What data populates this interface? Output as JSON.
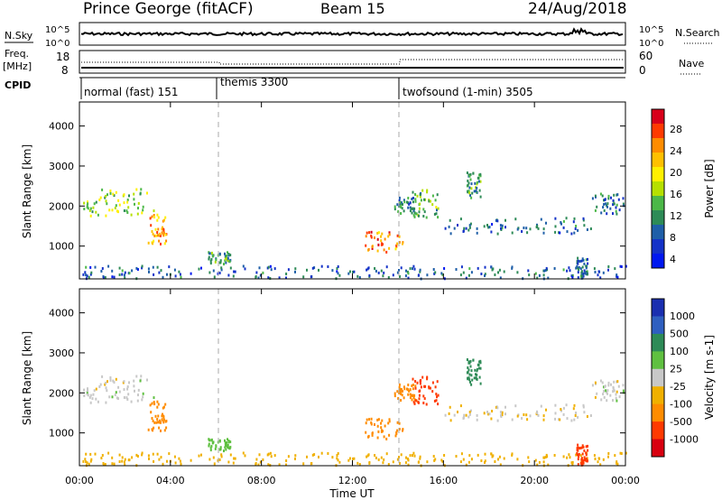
{
  "header": {
    "station": "Prince George (fitACF)",
    "beam": "Beam 15",
    "date": "24/Aug/2018"
  },
  "noise_panel": {
    "left_label": "N.Sky",
    "left_ticks": [
      "10^5",
      "10^0"
    ],
    "right_ticks": [
      "10^5",
      "10^0"
    ],
    "right_label": "N.Search"
  },
  "freq_panel": {
    "label_line1": "Freq.",
    "label_line2": "[MHz]",
    "left_ticks": [
      "18",
      "8"
    ],
    "right_ticks": [
      "60",
      "0"
    ],
    "right_label": "Nave"
  },
  "cpid_panel": {
    "label": "CPID",
    "modes": [
      {
        "name": "normal (fast) 151",
        "start_hour": 0
      },
      {
        "name": "themis 3300",
        "start_hour": 6
      },
      {
        "name": "twofsound (1-min) 3505",
        "start_hour": 14
      }
    ]
  },
  "axes": {
    "ylabel": "Slant Range [km]",
    "yticks": [
      1000,
      2000,
      3000,
      4000
    ],
    "yrange_km": [
      180,
      4600
    ],
    "xlabel": "Time UT",
    "xticks": [
      "00:00",
      "04:00",
      "08:00",
      "12:00",
      "16:00",
      "20:00",
      "00:00"
    ],
    "xrange_hours": [
      0,
      24
    ]
  },
  "colorbars": {
    "power": {
      "label": "Power [dB]",
      "ticks": [
        "28",
        "24",
        "20",
        "16",
        "12",
        "8",
        "4"
      ],
      "colors": [
        "#d8001a",
        "#ff3a00",
        "#ff8c00",
        "#ffc000",
        "#fff000",
        "#b6e000",
        "#4cb848",
        "#2e8b57",
        "#1f5fa8",
        "#1432c8",
        "#0018f0"
      ]
    },
    "velocity": {
      "label": "Velocity [m s-1]",
      "ticks": [
        "1000",
        "500",
        "100",
        "25",
        "-25",
        "-100",
        "-500",
        "-1000"
      ],
      "colors": [
        "#1a2fb0",
        "#2f5fc0",
        "#2e8b57",
        "#5fc040",
        "#c8c8c8",
        "#f0b000",
        "#ff8c00",
        "#ff3a00",
        "#d80010"
      ]
    }
  },
  "chart_data": {
    "type": "heatmap",
    "title": "Prince George (fitACF) Beam 15 24/Aug/2018",
    "xlabel": "Time UT",
    "ylabel": "Slant Range [km]",
    "xlim_hours": [
      0,
      24
    ],
    "ylim_km": [
      180,
      4600
    ],
    "mode_changes_hours": [
      6,
      14
    ],
    "echo_regions": [
      {
        "t0": 0.1,
        "t1": 3.3,
        "r0": 1750,
        "r1": 2450,
        "power_db": 14,
        "velocity": 0
      },
      {
        "t0": 3.0,
        "t1": 3.8,
        "r0": 1050,
        "r1": 1800,
        "power_db": 22,
        "velocity": -150
      },
      {
        "t0": 5.6,
        "t1": 6.6,
        "r0": 550,
        "r1": 850,
        "power_db": 10,
        "velocity": 60
      },
      {
        "t0": 0.0,
        "t1": 24.0,
        "r0": 180,
        "r1": 500,
        "power_db": 6,
        "velocity": -60
      },
      {
        "t0": 12.5,
        "t1": 14.2,
        "r0": 800,
        "r1": 1350,
        "power_db": 24,
        "velocity": -350
      },
      {
        "t0": 13.8,
        "t1": 14.8,
        "r0": 1800,
        "r1": 2200,
        "power_db": 8,
        "velocity": -200
      },
      {
        "t0": 14.6,
        "t1": 15.8,
        "r0": 1700,
        "r1": 2400,
        "power_db": 12,
        "velocity": -550
      },
      {
        "t0": 17.0,
        "t1": 17.6,
        "r0": 2200,
        "r1": 2900,
        "power_db": 10,
        "velocity": 200
      },
      {
        "t0": 16.0,
        "t1": 22.5,
        "r0": 1300,
        "r1": 1700,
        "power_db": 6,
        "velocity": -20
      },
      {
        "t0": 22.5,
        "t1": 24.0,
        "r0": 1800,
        "r1": 2300,
        "power_db": 7,
        "velocity": 0
      },
      {
        "t0": 21.8,
        "t1": 22.3,
        "r0": 180,
        "r1": 700,
        "power_db": 6,
        "velocity": -900
      }
    ]
  }
}
